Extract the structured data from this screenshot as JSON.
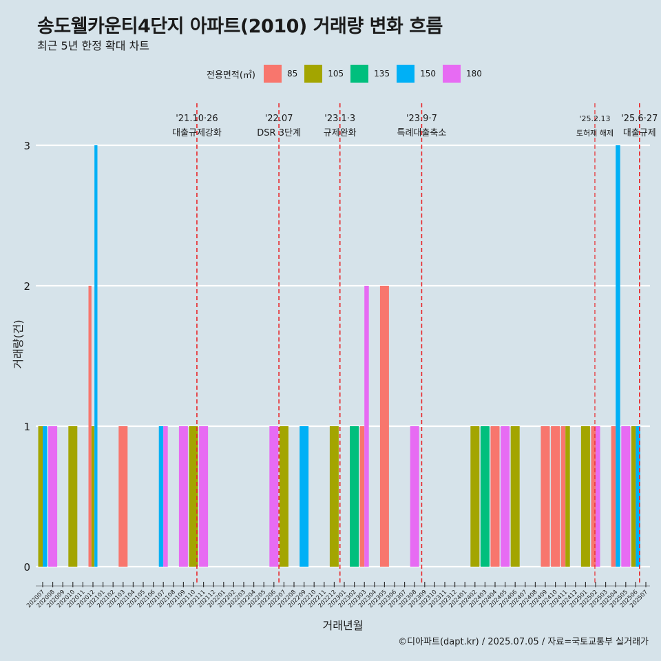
{
  "title": "송도웰카운티4단지 아파트(2010) 거래량 변화 흐름",
  "subtitle": "최근 5년 한정 확대 차트",
  "caption": "©디아파트(dapt.kr) / 2025.07.05 / 자료=국토교통부 실거래가",
  "legend": {
    "title": "전용면적(㎡)",
    "items": [
      {
        "label": "85",
        "color": "#F8766D"
      },
      {
        "label": "105",
        "color": "#A3A500"
      },
      {
        "label": "135",
        "color": "#00BF7D"
      },
      {
        "label": "150",
        "color": "#00B0F6"
      },
      {
        "label": "180",
        "color": "#E76BF3"
      }
    ]
  },
  "chart_data": {
    "type": "bar",
    "xlabel": "거래년월",
    "ylabel": "거래량(건)",
    "ylim": [
      0,
      3
    ],
    "yticks": [
      0,
      1,
      2,
      3
    ],
    "grid": true,
    "legend_position": "top",
    "categories": [
      "202007",
      "202008",
      "202009",
      "202010",
      "202011",
      "202012",
      "202101",
      "202102",
      "202103",
      "202104",
      "202105",
      "202106",
      "202107",
      "202108",
      "202109",
      "202110",
      "202111",
      "202112",
      "202201",
      "202202",
      "202203",
      "202204",
      "202205",
      "202206",
      "202207",
      "202208",
      "202209",
      "202210",
      "202211",
      "202212",
      "202301",
      "202302",
      "202303",
      "202304",
      "202305",
      "202306",
      "202307",
      "202308",
      "202309",
      "202310",
      "202311",
      "202312",
      "202401",
      "202402",
      "202403",
      "202404",
      "202405",
      "202406",
      "202407",
      "202408",
      "202409",
      "202410",
      "202411",
      "202412",
      "202501",
      "202502",
      "202503",
      "202504",
      "202505",
      "202506",
      "202507"
    ],
    "bars": [
      {
        "month": "202007",
        "groups": [
          {
            "series": "105",
            "value": 1
          },
          {
            "series": "150",
            "value": 1
          }
        ]
      },
      {
        "month": "202008",
        "groups": [
          {
            "series": "180",
            "value": 1
          }
        ]
      },
      {
        "month": "202010",
        "groups": [
          {
            "series": "105",
            "value": 1
          }
        ]
      },
      {
        "month": "202012",
        "groups": [
          {
            "series": "85",
            "value": 2
          },
          {
            "series": "105",
            "value": 1
          },
          {
            "series": "150",
            "value": 3
          }
        ]
      },
      {
        "month": "202103",
        "groups": [
          {
            "series": "85",
            "value": 1
          }
        ]
      },
      {
        "month": "202107",
        "groups": [
          {
            "series": "150",
            "value": 1
          },
          {
            "series": "180",
            "value": 1
          }
        ]
      },
      {
        "month": "202109",
        "groups": [
          {
            "series": "180",
            "value": 1
          }
        ]
      },
      {
        "month": "202110",
        "groups": [
          {
            "series": "105",
            "value": 1
          }
        ]
      },
      {
        "month": "202111",
        "groups": [
          {
            "series": "180",
            "value": 1
          }
        ]
      },
      {
        "month": "202206",
        "groups": [
          {
            "series": "180",
            "value": 1
          }
        ]
      },
      {
        "month": "202207",
        "groups": [
          {
            "series": "105",
            "value": 1
          }
        ]
      },
      {
        "month": "202209",
        "groups": [
          {
            "series": "150",
            "value": 1
          }
        ]
      },
      {
        "month": "202212",
        "groups": [
          {
            "series": "105",
            "value": 1
          }
        ]
      },
      {
        "month": "202302",
        "groups": [
          {
            "series": "135",
            "value": 1
          }
        ]
      },
      {
        "month": "202303",
        "groups": [
          {
            "series": "85",
            "value": 1
          },
          {
            "series": "180",
            "value": 2
          }
        ]
      },
      {
        "month": "202305",
        "groups": [
          {
            "series": "85",
            "value": 2
          }
        ]
      },
      {
        "month": "202308",
        "groups": [
          {
            "series": "180",
            "value": 1
          }
        ]
      },
      {
        "month": "202402",
        "groups": [
          {
            "series": "105",
            "value": 1
          }
        ]
      },
      {
        "month": "202403",
        "groups": [
          {
            "series": "135",
            "value": 1
          }
        ]
      },
      {
        "month": "202404",
        "groups": [
          {
            "series": "85",
            "value": 1
          }
        ]
      },
      {
        "month": "202405",
        "groups": [
          {
            "series": "180",
            "value": 1
          }
        ]
      },
      {
        "month": "202406",
        "groups": [
          {
            "series": "105",
            "value": 1
          }
        ]
      },
      {
        "month": "202409",
        "groups": [
          {
            "series": "85",
            "value": 1
          }
        ]
      },
      {
        "month": "202410",
        "groups": [
          {
            "series": "85",
            "value": 1
          }
        ]
      },
      {
        "month": "202411",
        "groups": [
          {
            "series": "85",
            "value": 1
          },
          {
            "series": "105",
            "value": 1
          }
        ]
      },
      {
        "month": "202501",
        "groups": [
          {
            "series": "105",
            "value": 1
          }
        ]
      },
      {
        "month": "202502",
        "groups": [
          {
            "series": "85",
            "value": 1
          },
          {
            "series": "180",
            "value": 1
          }
        ]
      },
      {
        "month": "202504",
        "groups": [
          {
            "series": "85",
            "value": 1
          },
          {
            "series": "150",
            "value": 3
          }
        ]
      },
      {
        "month": "202505",
        "groups": [
          {
            "series": "180",
            "value": 1
          }
        ]
      },
      {
        "month": "202506",
        "groups": [
          {
            "series": "105",
            "value": 1
          },
          {
            "series": "150",
            "value": 1
          }
        ]
      }
    ],
    "annotations": [
      {
        "month": "202110",
        "day_offset": 0.84,
        "line1": "'21.10·26",
        "line2": "대출규제강화"
      },
      {
        "month": "202207",
        "day_offset": 0.0,
        "line1": "'22.07",
        "line2": "DSR 3단계"
      },
      {
        "month": "202301",
        "day_offset": 0.07,
        "line1": "'23.1·3",
        "line2": "규제완화"
      },
      {
        "month": "202309",
        "day_offset": 0.2,
        "line1": "'23.9·7",
        "line2": "특례대출축소"
      },
      {
        "month": "202502",
        "day_offset": 0.43,
        "line1": "'25.2.13",
        "line2": "토허제 해제",
        "small": true
      },
      {
        "month": "202506",
        "day_offset": 0.87,
        "line1": "'25.6·27",
        "line2": "대출규제"
      }
    ]
  }
}
